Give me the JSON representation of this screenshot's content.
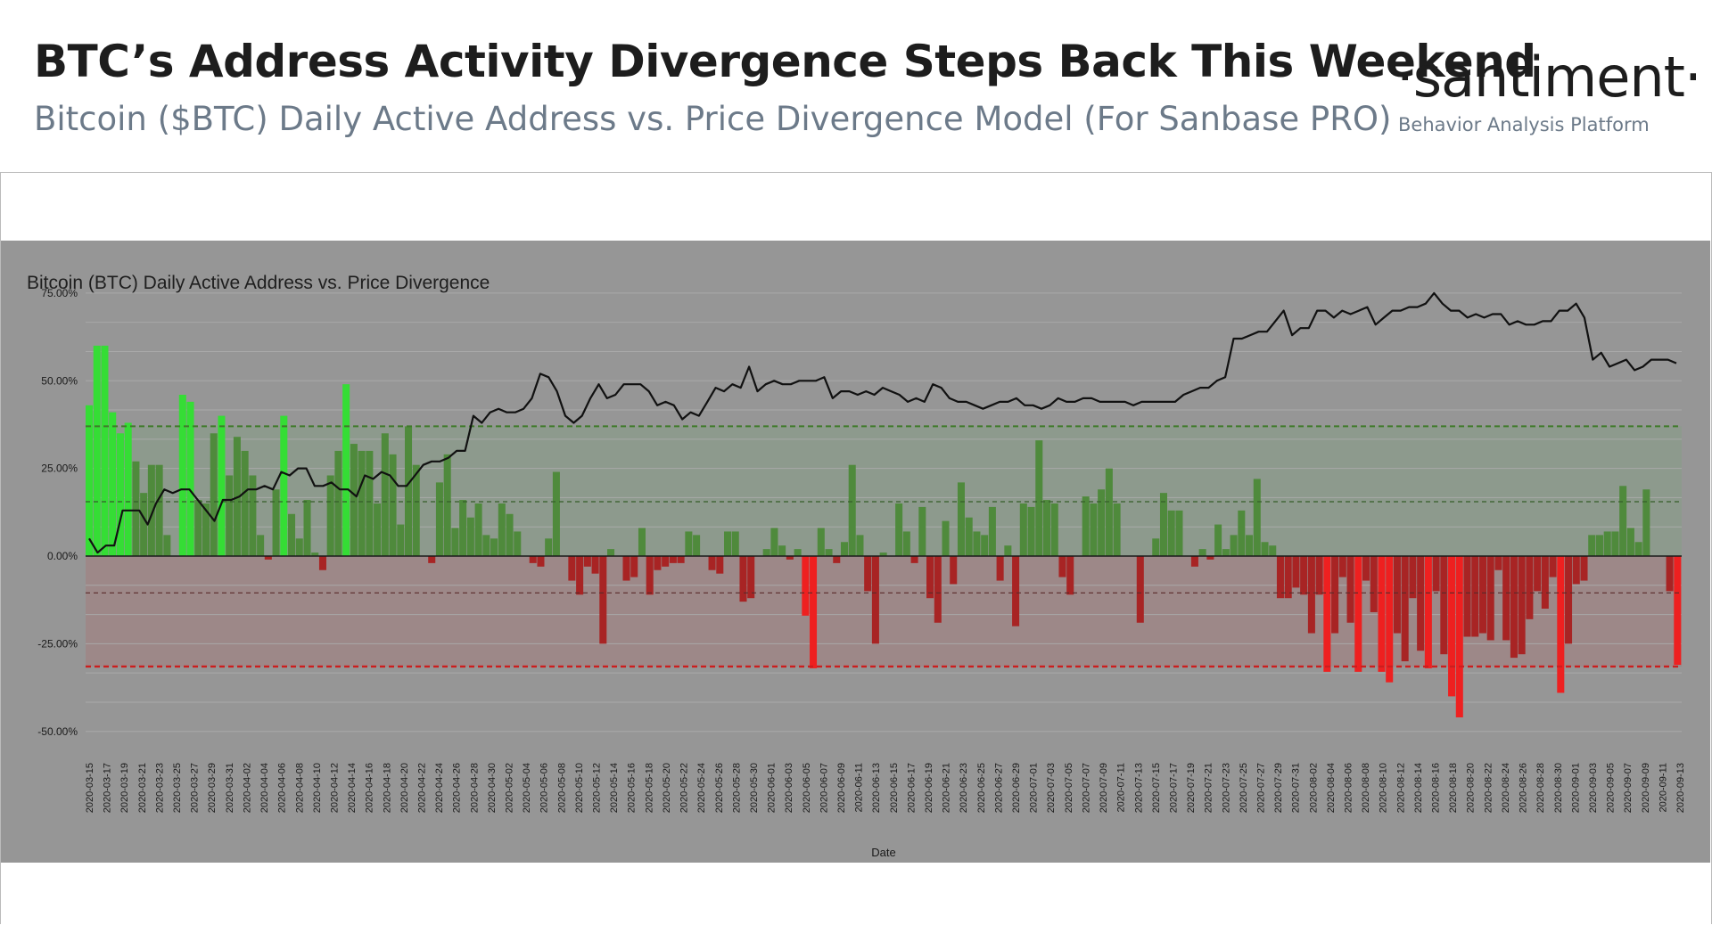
{
  "header": {
    "title": "BTC’s Address Activity Divergence Steps Back This Weekend",
    "subtitle": "Bitcoin ($BTC) Daily Active Address vs. Price Divergence Model (For Sanbase PRO)",
    "brand": "·santiment·",
    "tagline": "Behavior Analysis Platform"
  },
  "colors": {
    "plot_background": "#969696",
    "upper_band": "#8d9a8d",
    "lower_band": "#9d8888",
    "strong_positive": "#35dd35",
    "positive": "#4f8a3c",
    "positive_dark": "#3f6e34",
    "negative": "#a82424",
    "strong_negative": "#ee2020",
    "line": "#111111",
    "upper_threshold": "#3f7a2a",
    "lower_threshold": "#cc1e1e"
  },
  "chart_data": {
    "type": "bar",
    "title": "Bitcoin (BTC) Daily Active Address vs. Price Divergence",
    "xlabel": "Date",
    "ylabel": "",
    "ylim": [
      -50,
      75
    ],
    "y_ticks": [
      "75.00%",
      "50.00%",
      "25.00%",
      "0.00%",
      "-25.00%",
      "-50.00%"
    ],
    "y_tick_values": [
      75,
      50,
      25,
      0,
      -25,
      -50
    ],
    "x_tick_labels": [
      "2020-03-15",
      "2020-03-17",
      "2020-03-19",
      "2020-03-21",
      "2020-03-23",
      "2020-03-25",
      "2020-03-27",
      "2020-03-29",
      "2020-03-31",
      "2020-04-02",
      "2020-04-04",
      "2020-04-06",
      "2020-04-08",
      "2020-04-10",
      "2020-04-12",
      "2020-04-14",
      "2020-04-16",
      "2020-04-18",
      "2020-04-20",
      "2020-04-22",
      "2020-04-24",
      "2020-04-26",
      "2020-04-28",
      "2020-04-30",
      "2020-05-02",
      "2020-05-04",
      "2020-05-06",
      "2020-05-08",
      "2020-05-10",
      "2020-05-12",
      "2020-05-14",
      "2020-05-16",
      "2020-05-18",
      "2020-05-20",
      "2020-05-22",
      "2020-05-24",
      "2020-05-26",
      "2020-05-28",
      "2020-05-30",
      "2020-06-01",
      "2020-06-03",
      "2020-06-05",
      "2020-06-07",
      "2020-06-09",
      "2020-06-11",
      "2020-06-13",
      "2020-06-15",
      "2020-06-17",
      "2020-06-19",
      "2020-06-21",
      "2020-06-23",
      "2020-06-25",
      "2020-06-27",
      "2020-06-29",
      "2020-07-01",
      "2020-07-03",
      "2020-07-05",
      "2020-07-07",
      "2020-07-09",
      "2020-07-11",
      "2020-07-13",
      "2020-07-15",
      "2020-07-17",
      "2020-07-19",
      "2020-07-21",
      "2020-07-23",
      "2020-07-25",
      "2020-07-27",
      "2020-07-29",
      "2020-07-31",
      "2020-08-02",
      "2020-08-04",
      "2020-08-06",
      "2020-08-08",
      "2020-08-10",
      "2020-08-12",
      "2020-08-14",
      "2020-08-16",
      "2020-08-18",
      "2020-08-20",
      "2020-08-22",
      "2020-08-24",
      "2020-08-26",
      "2020-08-28",
      "2020-08-30",
      "2020-09-01",
      "2020-09-03",
      "2020-09-05",
      "2020-09-07",
      "2020-09-09",
      "2020-09-11",
      "2020-09-13"
    ],
    "thresholds": {
      "upper_strong": 37,
      "upper": 15.5,
      "lower": -10.5,
      "lower_strong": -31.5
    },
    "series": [
      {
        "name": "",
        "kind": "bar",
        "values": [
          43,
          60,
          60,
          41,
          35,
          38,
          27,
          18,
          26,
          26,
          6,
          0,
          46,
          44,
          16,
          15,
          35,
          40,
          23,
          34,
          30,
          23,
          6,
          -1,
          19,
          40,
          12,
          5,
          16,
          1,
          -4,
          23,
          30,
          49,
          32,
          30,
          30,
          15,
          35,
          29,
          9,
          37,
          26,
          0,
          -2,
          21,
          29,
          8,
          16,
          11,
          15,
          6,
          5,
          15,
          12,
          7,
          0,
          -2,
          -3,
          5,
          24,
          0,
          -7,
          -11,
          -3,
          -5,
          -25,
          2,
          0,
          -7,
          -6,
          8,
          -11,
          -4,
          -3,
          -2,
          -2,
          7,
          6,
          0,
          -4,
          -5,
          7,
          7,
          -13,
          -12,
          0,
          2,
          8,
          3,
          -1,
          2,
          -17,
          -32,
          8,
          2,
          -2,
          4,
          26,
          6,
          -10,
          -25,
          1,
          0,
          15,
          7,
          -2,
          14,
          -12,
          -19,
          10,
          -8,
          21,
          11,
          7,
          6,
          14,
          -7,
          3,
          -20,
          15,
          14,
          33,
          16,
          15,
          -6,
          -11,
          0,
          17,
          15,
          19,
          25,
          15,
          0,
          0,
          -19,
          0,
          5,
          18,
          13,
          13,
          0,
          -3,
          2,
          -1,
          9,
          2,
          6,
          13,
          6,
          22,
          4,
          3,
          -12,
          -12,
          -9,
          -11,
          -22,
          -11,
          -33,
          -22,
          -6,
          -19,
          -33,
          -7,
          -16,
          -33,
          -36,
          -22,
          -30,
          -12,
          -27,
          -32,
          -10,
          -28,
          -40,
          -46,
          -23,
          -23,
          -22,
          -24,
          -4,
          -24,
          -29,
          -28,
          -18,
          -10,
          -15,
          -6,
          -39,
          -25,
          -8,
          -7,
          6,
          6,
          7,
          7,
          20,
          8,
          4,
          19,
          0,
          0,
          -10,
          -31
        ],
        "colors": [
          "sp",
          "sp",
          "sp",
          "sp",
          "sp",
          "sp",
          "p",
          "p",
          "p",
          "p",
          "p",
          "p",
          "sp",
          "sp",
          "p",
          "p",
          "p",
          "sp",
          "p",
          "p",
          "p",
          "p",
          "p",
          "n",
          "p",
          "sp",
          "p",
          "p",
          "p",
          "p",
          "n",
          "p",
          "p",
          "sp",
          "p",
          "p",
          "p",
          "p",
          "p",
          "p",
          "p",
          "p",
          "p",
          "p",
          "n",
          "p",
          "p",
          "p",
          "p",
          "p",
          "p",
          "p",
          "p",
          "p",
          "p",
          "p",
          "p",
          "n",
          "n",
          "p",
          "p",
          "p",
          "n",
          "n",
          "n",
          "n",
          "n",
          "p",
          "p",
          "n",
          "n",
          "p",
          "n",
          "n",
          "n",
          "n",
          "n",
          "p",
          "p",
          "p",
          "n",
          "n",
          "p",
          "p",
          "n",
          "n",
          "p",
          "p",
          "p",
          "p",
          "n",
          "p",
          "sn",
          "sn",
          "p",
          "p",
          "n",
          "p",
          "p",
          "p",
          "n",
          "n",
          "p",
          "p",
          "p",
          "p",
          "n",
          "p",
          "n",
          "n",
          "p",
          "n",
          "p",
          "p",
          "p",
          "p",
          "p",
          "n",
          "p",
          "n",
          "p",
          "p",
          "p",
          "p",
          "p",
          "n",
          "n",
          "p",
          "p",
          "p",
          "p",
          "p",
          "p",
          "p",
          "p",
          "n",
          "p",
          "p",
          "p",
          "p",
          "p",
          "p",
          "n",
          "p",
          "n",
          "p",
          "p",
          "p",
          "p",
          "p",
          "p",
          "p",
          "p",
          "n",
          "n",
          "n",
          "n",
          "n",
          "n",
          "sn",
          "n",
          "n",
          "n",
          "sn",
          "n",
          "n",
          "sn",
          "sn",
          "n",
          "n",
          "n",
          "n",
          "sn",
          "n",
          "n",
          "sn",
          "sn",
          "n",
          "n",
          "n",
          "n",
          "n",
          "n",
          "n",
          "n",
          "n",
          "n",
          "n",
          "n",
          "sn",
          "n",
          "n",
          "n",
          "p",
          "p",
          "p",
          "p",
          "p",
          "p",
          "p",
          "p",
          "p",
          "p",
          "n",
          "sn"
        ]
      },
      {
        "name": "",
        "kind": "line",
        "values": [
          5,
          1,
          3,
          3,
          13,
          13,
          13,
          9,
          15,
          19,
          18,
          19,
          19,
          16,
          13,
          10,
          16,
          16,
          17,
          19,
          19,
          20,
          19,
          24,
          23,
          25,
          25,
          20,
          20,
          21,
          19,
          19,
          17,
          23,
          22,
          24,
          23,
          20,
          20,
          23,
          26,
          27,
          27,
          28,
          30,
          30,
          40,
          38,
          41,
          42,
          41,
          41,
          42,
          45,
          52,
          51,
          47,
          40,
          38,
          40,
          45,
          49,
          45,
          46,
          49,
          49,
          49,
          47,
          43,
          44,
          43,
          39,
          41,
          40,
          44,
          48,
          47,
          49,
          48,
          54,
          47,
          49,
          50,
          49,
          49,
          50,
          50,
          50,
          51,
          45,
          47,
          47,
          46,
          47,
          46,
          48,
          47,
          46,
          44,
          45,
          44,
          49,
          48,
          45,
          44,
          44,
          43,
          42,
          43,
          44,
          44,
          45,
          43,
          43,
          42,
          43,
          45,
          44,
          44,
          45,
          45,
          44,
          44,
          44,
          44,
          43,
          44,
          44,
          44,
          44,
          44,
          46,
          47,
          48,
          48,
          50,
          51,
          62,
          62,
          63,
          64,
          64,
          67,
          70,
          63,
          65,
          65,
          70,
          70,
          68,
          70,
          69,
          70,
          71,
          66,
          68,
          70,
          70,
          71,
          71,
          72,
          75,
          72,
          70,
          70,
          68,
          69,
          68,
          69,
          69,
          66,
          67,
          66,
          66,
          67,
          67,
          70,
          70,
          72,
          68,
          56,
          58,
          54,
          55,
          56,
          53,
          54,
          56,
          56,
          56,
          55
        ]
      }
    ],
    "grid": true,
    "legend": "none"
  }
}
